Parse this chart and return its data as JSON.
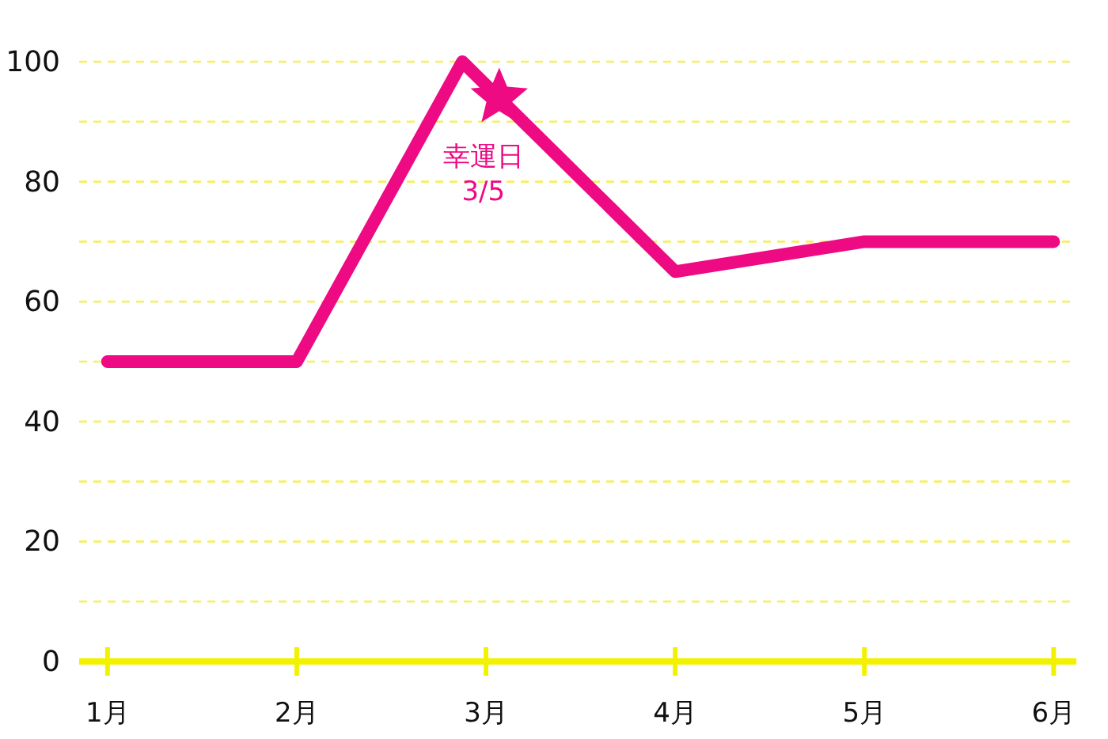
{
  "chart_data": {
    "type": "line",
    "xlim": [
      0.85,
      6.12
    ],
    "ylim": [
      0,
      100
    ],
    "xticks": [
      {
        "value": 1,
        "label": "1月"
      },
      {
        "value": 2,
        "label": "2月"
      },
      {
        "value": 3,
        "label": "3月"
      },
      {
        "value": 4,
        "label": "4月"
      },
      {
        "value": 5,
        "label": "5月"
      },
      {
        "value": 6,
        "label": "6月"
      }
    ],
    "yticks": [
      0,
      {
        "value": 10,
        "label": null
      },
      20,
      {
        "value": 30,
        "label": null
      },
      40,
      {
        "value": 50,
        "label": null
      },
      60,
      {
        "value": 70,
        "label": null
      },
      80,
      {
        "value": 90,
        "label": null
      },
      100
    ],
    "grid": "y",
    "series": [
      {
        "color": "#ee0a83",
        "x": [
          1,
          2,
          2.875,
          4,
          5,
          6
        ],
        "values": [
          50,
          50,
          100,
          65,
          70,
          70
        ],
        "line_style": "solid"
      },
      {
        "type": "scatter",
        "color": "#ee0a83",
        "x": [
          3.07
        ],
        "values": [
          94
        ],
        "marker": "star"
      }
    ],
    "annotations": [
      {
        "text": "幸運日\n3/5",
        "x": 3.07,
        "y": 94
      }
    ]
  }
}
